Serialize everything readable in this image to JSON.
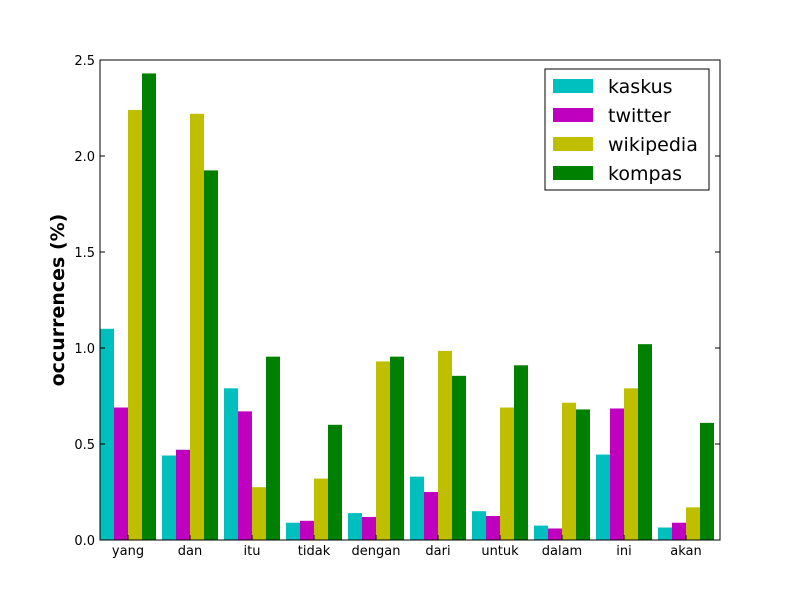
{
  "chart_data": {
    "type": "bar",
    "title": "",
    "xlabel": "",
    "ylabel": "occurrences (%)",
    "ylim": [
      0,
      2.5
    ],
    "yticks": [
      0.0,
      0.5,
      1.0,
      1.5,
      2.0,
      2.5
    ],
    "ytick_labels": [
      "0.0",
      "0.5",
      "1.0",
      "1.5",
      "2.0",
      "2.5"
    ],
    "grid": false,
    "legend_position": "top-right",
    "categories": [
      "yang",
      "dan",
      "itu",
      "tidak",
      "dengan",
      "dari",
      "untuk",
      "dalam",
      "ini",
      "akan"
    ],
    "series": [
      {
        "name": "kaskus",
        "color": "#00bfbf",
        "values": [
          1.1,
          0.44,
          0.79,
          0.09,
          0.14,
          0.33,
          0.15,
          0.075,
          0.445,
          0.065
        ]
      },
      {
        "name": "twitter",
        "color": "#bf00bf",
        "values": [
          0.69,
          0.47,
          0.67,
          0.1,
          0.12,
          0.25,
          0.125,
          0.06,
          0.685,
          0.09
        ]
      },
      {
        "name": "wikipedia",
        "color": "#bfbf00",
        "values": [
          2.24,
          2.22,
          0.275,
          0.32,
          0.93,
          0.985,
          0.69,
          0.715,
          0.79,
          0.17
        ]
      },
      {
        "name": "kompas",
        "color": "#008000",
        "values": [
          2.43,
          1.925,
          0.955,
          0.6,
          0.955,
          0.855,
          0.91,
          0.68,
          1.02,
          0.61
        ]
      }
    ]
  }
}
